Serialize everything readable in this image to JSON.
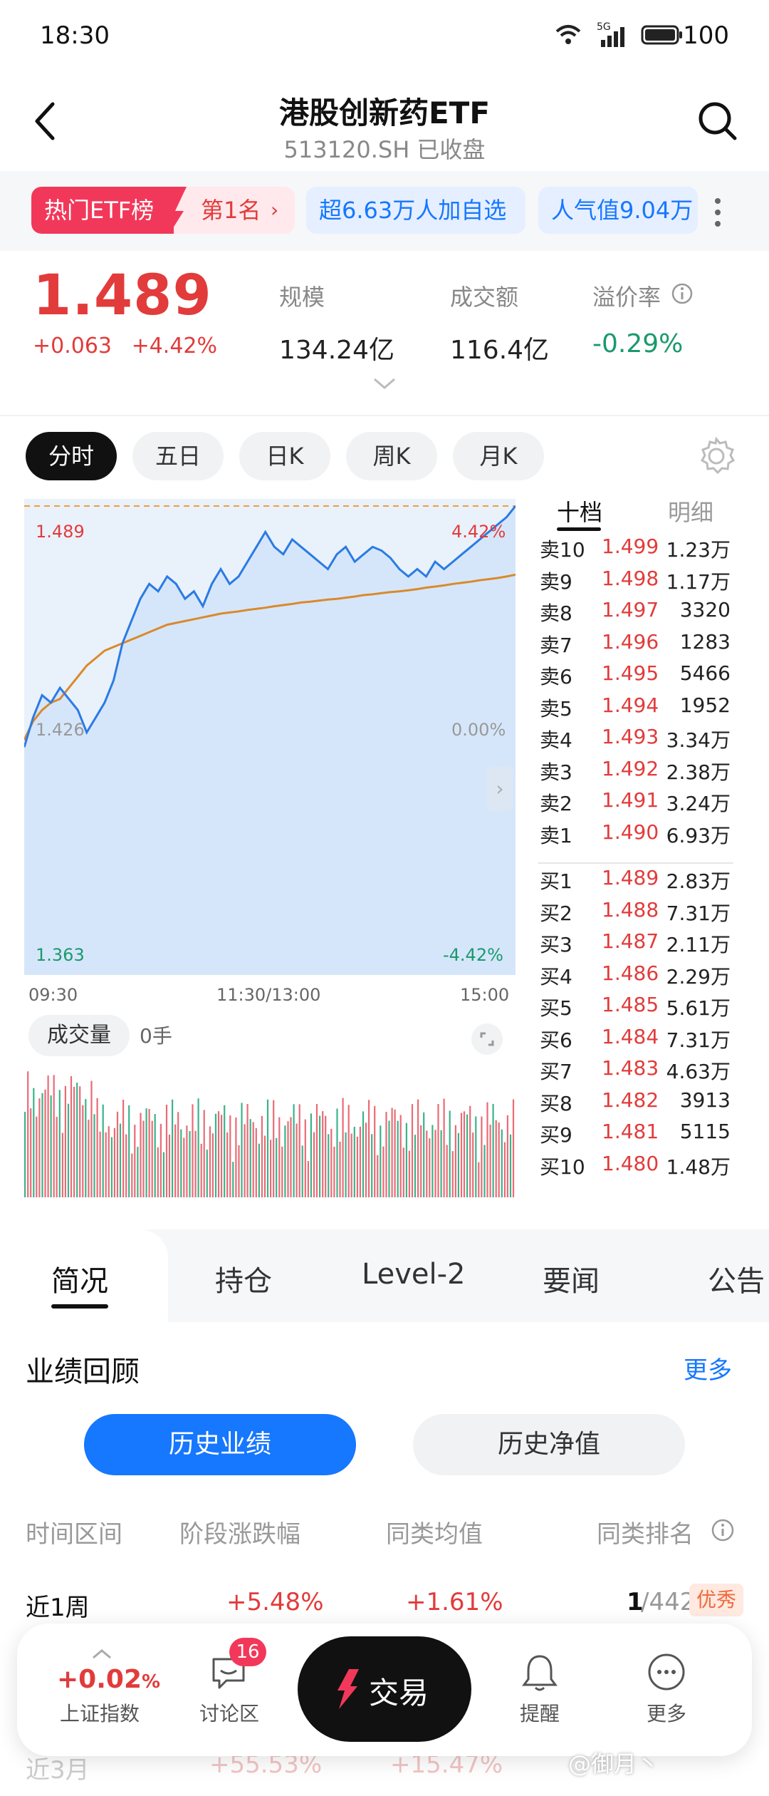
{
  "status_bar": {
    "time": "18:30",
    "signal": "5G",
    "battery": "100"
  },
  "header": {
    "title": "港股创新药ETF",
    "subtitle": "513120.SH 已收盘"
  },
  "rank_strip": {
    "hot_label": "热门ETF榜",
    "rank": "第1名",
    "followers": "超6.63万人加自选",
    "popularity": "人气值9.04万"
  },
  "quote": {
    "price": "1.489",
    "change": "+0.063",
    "change_pct": "+4.42%",
    "metrics": [
      {
        "label": "规模",
        "value": "134.24亿"
      },
      {
        "label": "成交额",
        "value": "116.4亿"
      },
      {
        "label": "溢价率",
        "value": "-0.29%"
      }
    ],
    "colors": {
      "up": "#e23b3b",
      "down": "#1a9a6c"
    }
  },
  "chart_tabs": [
    "分时",
    "五日",
    "日K",
    "周K",
    "月K"
  ],
  "chart_tabs_active": "分时",
  "book_tabs": [
    "十档",
    "明细"
  ],
  "chart_labels": {
    "high_price": "1.489",
    "high_pct": "4.42%",
    "mid_price": "1.426",
    "mid_pct": "0.00%",
    "low_price": "1.363",
    "low_pct": "-4.42%",
    "time_start": "09:30",
    "time_mid": "11:30/13:00",
    "time_end": "15:00",
    "volume_label": "成交量",
    "volume_value": "0手"
  },
  "chart_data": {
    "type": "line",
    "title": "",
    "xlabel": "",
    "ylabel": "",
    "ylim": [
      1.363,
      1.489
    ],
    "x_ticks": [
      "09:30",
      "11:30/13:00",
      "15:00"
    ],
    "series": [
      {
        "values": [
          1.424,
          1.432,
          1.438,
          1.436,
          1.44,
          1.437,
          1.434,
          1.428,
          1.432,
          1.436,
          1.442,
          1.452,
          1.458,
          1.464,
          1.468,
          1.466,
          1.47,
          1.468,
          1.464,
          1.466,
          1.462,
          1.468,
          1.472,
          1.468,
          1.47,
          1.474,
          1.478,
          1.482,
          1.478,
          1.476,
          1.48,
          1.478,
          1.476,
          1.474,
          1.472,
          1.476,
          1.478,
          1.474,
          1.476,
          1.478,
          1.477,
          1.475,
          1.472,
          1.47,
          1.472,
          1.47,
          1.474,
          1.472,
          1.474,
          1.476,
          1.478,
          1.48,
          1.482,
          1.484,
          1.486,
          1.489
        ]
      },
      {
        "values": [
          1.426,
          1.431,
          1.434,
          1.436,
          1.437,
          1.44,
          1.443,
          1.446,
          1.448,
          1.45,
          1.451,
          1.452,
          1.453,
          1.454,
          1.455,
          1.456,
          1.457,
          1.4575,
          1.458,
          1.4585,
          1.459,
          1.4595,
          1.46,
          1.4603,
          1.4606,
          1.461,
          1.4613,
          1.4616,
          1.462,
          1.4623,
          1.4626,
          1.463,
          1.4632,
          1.4635,
          1.4638,
          1.464,
          1.4643,
          1.4646,
          1.465,
          1.4652,
          1.4655,
          1.4658,
          1.466,
          1.4663,
          1.4666,
          1.467,
          1.4673,
          1.4676,
          1.468,
          1.4683,
          1.4686,
          1.469,
          1.4693,
          1.4696,
          1.47,
          1.4705
        ]
      }
    ],
    "prev_close": 1.426,
    "grid": false
  },
  "order_book": {
    "asks": [
      {
        "label": "卖10",
        "price": "1.499",
        "vol": "1.23万"
      },
      {
        "label": "卖9",
        "price": "1.498",
        "vol": "1.17万"
      },
      {
        "label": "卖8",
        "price": "1.497",
        "vol": "3320"
      },
      {
        "label": "卖7",
        "price": "1.496",
        "vol": "1283"
      },
      {
        "label": "卖6",
        "price": "1.495",
        "vol": "5466"
      },
      {
        "label": "卖5",
        "price": "1.494",
        "vol": "1952"
      },
      {
        "label": "卖4",
        "price": "1.493",
        "vol": "3.34万"
      },
      {
        "label": "卖3",
        "price": "1.492",
        "vol": "2.38万"
      },
      {
        "label": "卖2",
        "price": "1.491",
        "vol": "3.24万"
      },
      {
        "label": "卖1",
        "price": "1.490",
        "vol": "6.93万"
      }
    ],
    "bids": [
      {
        "label": "买1",
        "price": "1.489",
        "vol": "2.83万"
      },
      {
        "label": "买2",
        "price": "1.488",
        "vol": "7.31万"
      },
      {
        "label": "买3",
        "price": "1.487",
        "vol": "2.11万"
      },
      {
        "label": "买4",
        "price": "1.486",
        "vol": "2.29万"
      },
      {
        "label": "买5",
        "price": "1.485",
        "vol": "5.61万"
      },
      {
        "label": "买6",
        "price": "1.484",
        "vol": "7.31万"
      },
      {
        "label": "买7",
        "price": "1.483",
        "vol": "4.63万"
      },
      {
        "label": "买8",
        "price": "1.482",
        "vol": "3913"
      },
      {
        "label": "买9",
        "price": "1.481",
        "vol": "5115"
      },
      {
        "label": "买10",
        "price": "1.480",
        "vol": "1.48万"
      }
    ]
  },
  "detail_tabs": [
    "简况",
    "持仓",
    "Level-2",
    "要闻",
    "公告"
  ],
  "performance": {
    "title": "业绩回顾",
    "more": "更多",
    "seg_active": "历史业绩",
    "seg_other": "历史净值",
    "columns": [
      "时间区间",
      "阶段涨跌幅",
      "同类均值",
      "同类排名"
    ],
    "rows": [
      {
        "period": "近1周",
        "change": "+5.48%",
        "avg": "+1.61%",
        "rank": "1",
        "total": "/442",
        "badge": "优秀"
      },
      {
        "period": "近3月",
        "change": "+55.53%",
        "avg": "+15.47%",
        "rank": "",
        "total": "",
        "badge": ""
      }
    ]
  },
  "bottom_nav": {
    "index_value": "+0.02",
    "index_pct_suffix": "%",
    "index_label": "上证指数",
    "discuss_label": "讨论区",
    "discuss_badge": "16",
    "trade_label": "交易",
    "remind_label": "提醒",
    "more_label": "更多"
  },
  "watermark": "@御月丶"
}
